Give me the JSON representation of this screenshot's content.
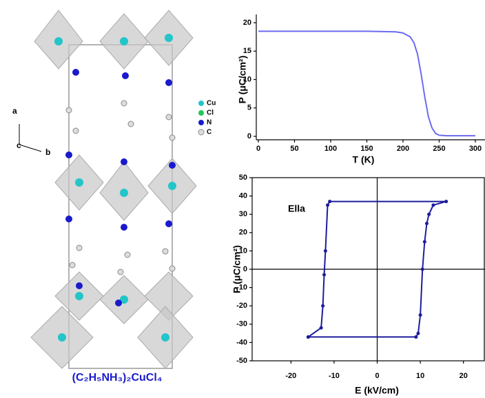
{
  "structure": {
    "formula": "(C₂H₅NH₃)₂CuCl₄",
    "axes": [
      "a",
      "c",
      "b"
    ],
    "legend": [
      "Cu",
      "Cl",
      "N",
      "C"
    ]
  },
  "chart_data": [
    {
      "type": "line",
      "x_label": "T (K)",
      "y_label": "P (μC/cm²)",
      "color": "#6a6af0",
      "x": [
        0,
        50,
        100,
        150,
        190,
        200,
        210,
        215,
        220,
        225,
        230,
        235,
        240,
        245,
        250,
        260,
        280,
        300
      ],
      "values": [
        18.5,
        18.5,
        18.5,
        18.5,
        18.4,
        18.2,
        17.5,
        16.5,
        14.5,
        11,
        7,
        3.5,
        1.5,
        0.5,
        0.2,
        0.1,
        0.1,
        0.1
      ],
      "xlim": [
        0,
        300
      ],
      "ylim": [
        0,
        20
      ],
      "xticks": [
        0,
        50,
        100,
        150,
        200,
        250,
        300
      ],
      "yticks": [
        0,
        5,
        10,
        15,
        20
      ],
      "frame": false,
      "zero_lines": false,
      "markers": false
    },
    {
      "type": "line",
      "x_label": "E (kV/cm)",
      "y_label": "P (μC/cm²)",
      "annotation": "Ella",
      "color": "#1c1c9c",
      "x": [
        -16,
        9,
        9.5,
        10,
        10.5,
        11,
        11.5,
        12,
        13,
        16,
        -11,
        -11.5,
        -12,
        -12.3,
        -12.6,
        -13,
        -16
      ],
      "values": [
        -37,
        -37,
        -35,
        -25,
        0,
        15,
        25,
        30,
        35,
        37,
        37,
        35,
        10,
        -3,
        -20,
        -32,
        -37
      ],
      "xlim": [
        -29,
        25
      ],
      "ylim": [
        -50,
        50
      ],
      "xticks": [
        -20,
        -10,
        0,
        10,
        20
      ],
      "yticks": [
        -50,
        -40,
        -30,
        -20,
        -10,
        0,
        10,
        20,
        30,
        40,
        50
      ],
      "frame": true,
      "zero_lines": true,
      "markers": true
    }
  ]
}
